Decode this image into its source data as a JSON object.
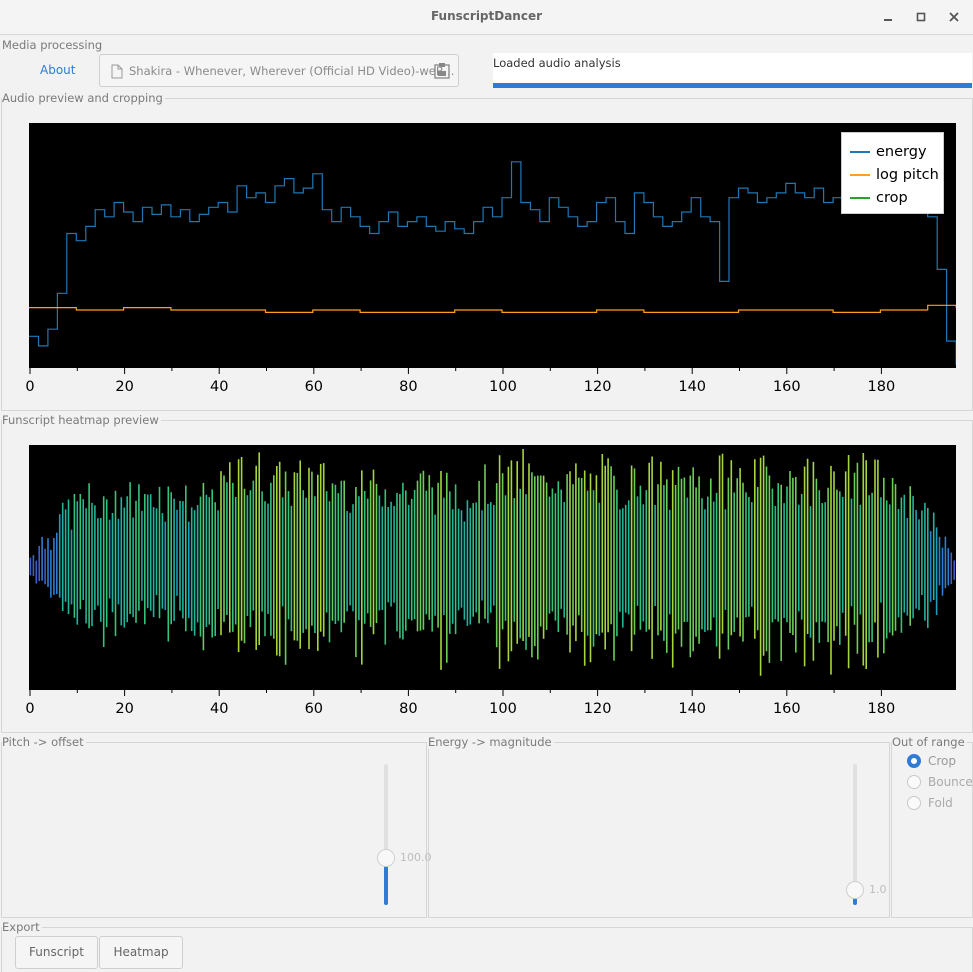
{
  "window": {
    "title": "FunscriptDancer",
    "minimize_icon": "minimize-icon",
    "maximize_icon": "maximize-icon",
    "close_icon": "close-icon"
  },
  "media": {
    "group_label": "Media processing",
    "about_label": "About",
    "file_name": "Shakira - Whenever, Wherever (Official HD Video)-weR...",
    "status_text": "Loaded audio analysis",
    "progress": 1.0
  },
  "audio_preview": {
    "group_label": "Audio preview and cropping",
    "legend": [
      "energy",
      "log pitch",
      "crop"
    ],
    "colors": {
      "energy": "#1f77b4",
      "log_pitch": "#ff9f1a",
      "crop": "#2ca02c"
    }
  },
  "heatmap_preview": {
    "group_label": "Funscript heatmap preview"
  },
  "pitch_offset": {
    "group_label": "Pitch -> offset",
    "value": "100.0",
    "level": 0.3
  },
  "energy_magnitude": {
    "group_label": "Energy -> magnitude",
    "value": "1.0",
    "level": 0.03
  },
  "out_of_range": {
    "group_label": "Out of range",
    "options": [
      "Crop",
      "Bounce",
      "Fold"
    ],
    "selected": "Crop"
  },
  "export": {
    "group_label": "Export",
    "funscript_label": "Funscript",
    "heatmap_label": "Heatmap"
  },
  "chart_data": [
    {
      "type": "line",
      "title": "",
      "xlabel": "",
      "ylabel": "",
      "xlim": [
        0,
        196
      ],
      "xticks": [
        0,
        20,
        40,
        60,
        80,
        100,
        120,
        140,
        160,
        180
      ],
      "legend": "top-right",
      "grid": false,
      "series": [
        {
          "name": "energy",
          "x": [
            0,
            2,
            4,
            6,
            8,
            10,
            12,
            14,
            16,
            18,
            20,
            22,
            24,
            26,
            28,
            30,
            32,
            34,
            36,
            38,
            40,
            42,
            44,
            46,
            48,
            50,
            52,
            54,
            56,
            58,
            60,
            62,
            64,
            66,
            68,
            70,
            72,
            74,
            76,
            78,
            80,
            82,
            84,
            86,
            88,
            90,
            92,
            94,
            96,
            98,
            100,
            102,
            104,
            106,
            108,
            110,
            112,
            114,
            116,
            118,
            120,
            122,
            124,
            126,
            128,
            130,
            132,
            134,
            136,
            138,
            140,
            142,
            144,
            146,
            148,
            150,
            152,
            154,
            156,
            158,
            160,
            162,
            164,
            166,
            168,
            170,
            172,
            174,
            176,
            178,
            180,
            182,
            184,
            186,
            188,
            190,
            192,
            194,
            196
          ],
          "y": [
            0.12,
            0.08,
            0.15,
            0.3,
            0.55,
            0.52,
            0.58,
            0.65,
            0.62,
            0.68,
            0.64,
            0.6,
            0.66,
            0.63,
            0.67,
            0.62,
            0.65,
            0.6,
            0.63,
            0.66,
            0.68,
            0.64,
            0.75,
            0.7,
            0.72,
            0.68,
            0.75,
            0.78,
            0.72,
            0.74,
            0.8,
            0.65,
            0.6,
            0.66,
            0.62,
            0.58,
            0.55,
            0.6,
            0.64,
            0.58,
            0.6,
            0.62,
            0.58,
            0.56,
            0.6,
            0.57,
            0.55,
            0.6,
            0.66,
            0.62,
            0.7,
            0.85,
            0.68,
            0.65,
            0.6,
            0.7,
            0.66,
            0.62,
            0.58,
            0.6,
            0.68,
            0.7,
            0.6,
            0.55,
            0.72,
            0.68,
            0.62,
            0.58,
            0.6,
            0.64,
            0.7,
            0.62,
            0.6,
            0.35,
            0.7,
            0.74,
            0.72,
            0.68,
            0.7,
            0.72,
            0.76,
            0.72,
            0.7,
            0.74,
            0.68,
            0.7,
            0.72,
            0.75,
            0.7,
            0.68,
            0.72,
            0.7,
            0.66,
            0.7,
            0.68,
            0.62,
            0.4,
            0.1,
            0.0
          ]
        },
        {
          "name": "log pitch",
          "x": [
            0,
            10,
            20,
            30,
            40,
            50,
            60,
            70,
            80,
            90,
            100,
            110,
            120,
            130,
            140,
            150,
            160,
            170,
            180,
            190,
            196
          ],
          "y": [
            0.24,
            0.23,
            0.24,
            0.23,
            0.23,
            0.22,
            0.23,
            0.22,
            0.22,
            0.23,
            0.22,
            0.22,
            0.23,
            0.22,
            0.22,
            0.23,
            0.23,
            0.22,
            0.23,
            0.25,
            0.24
          ]
        },
        {
          "name": "crop",
          "x": [],
          "y": []
        }
      ]
    },
    {
      "type": "heatmap",
      "title": "",
      "xlabel": "",
      "ylabel": "",
      "xlim": [
        0,
        196
      ],
      "xticks": [
        0,
        20,
        40,
        60,
        80,
        100,
        120,
        140,
        160,
        180
      ],
      "grid": false,
      "series": [
        {
          "name": "",
          "x": [
            0,
            4,
            8,
            12,
            16,
            20,
            24,
            28,
            32,
            36,
            40,
            44,
            48,
            52,
            56,
            60,
            64,
            68,
            72,
            76,
            80,
            84,
            88,
            92,
            96,
            100,
            104,
            108,
            112,
            116,
            120,
            124,
            128,
            132,
            136,
            140,
            144,
            148,
            152,
            156,
            160,
            164,
            168,
            172,
            176,
            180,
            184,
            188,
            192,
            196
          ],
          "y": [
            0.1,
            0.3,
            0.6,
            0.7,
            0.65,
            0.72,
            0.7,
            0.75,
            0.72,
            0.7,
            0.8,
            0.95,
            0.95,
            0.95,
            0.9,
            0.95,
            0.85,
            0.85,
            0.85,
            0.82,
            0.8,
            0.85,
            0.85,
            0.8,
            0.78,
            0.95,
            0.95,
            0.9,
            0.95,
            0.9,
            0.95,
            0.85,
            0.9,
            0.88,
            0.85,
            0.92,
            0.85,
            0.95,
            0.9,
            0.92,
            0.95,
            0.95,
            0.92,
            0.9,
            0.95,
            0.88,
            0.8,
            0.7,
            0.4,
            0.1
          ]
        }
      ]
    }
  ]
}
